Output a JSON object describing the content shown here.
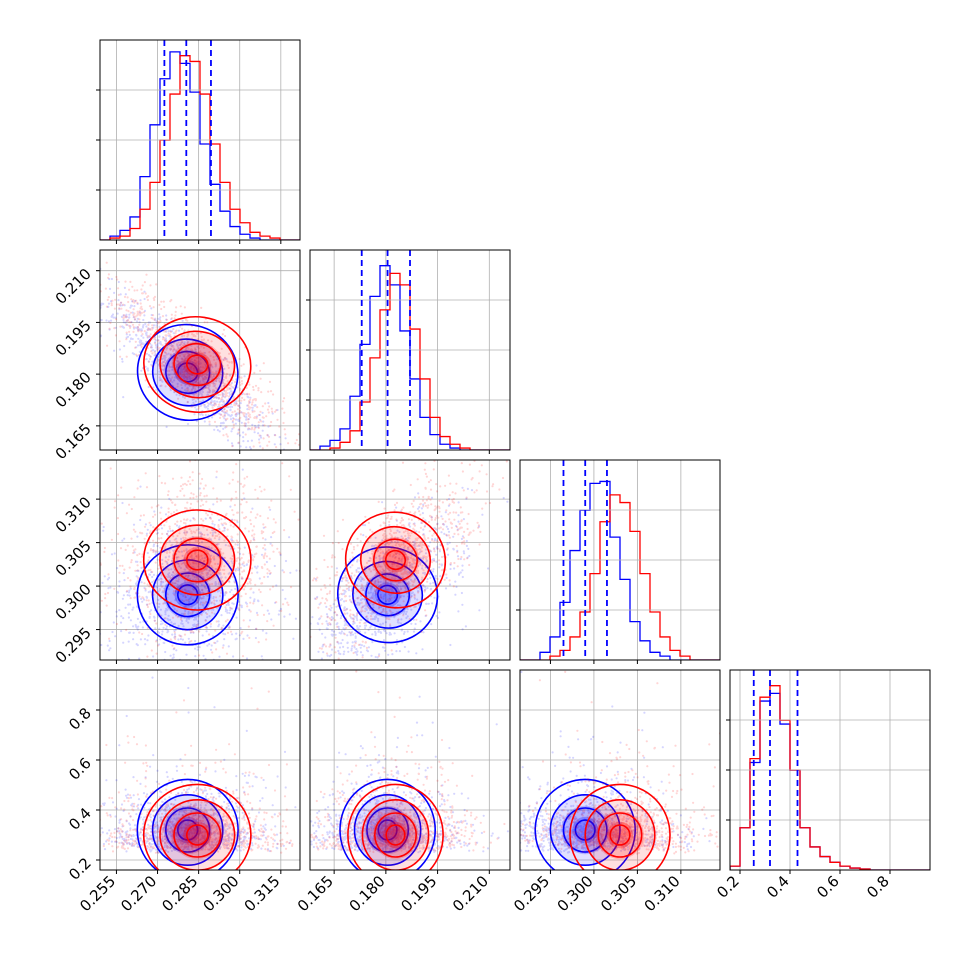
{
  "chart_data": {
    "type": "corner",
    "title": "",
    "n_params": 4,
    "params": [
      {
        "ticks": [
          0.255,
          0.27,
          0.285,
          0.3,
          0.315
        ],
        "tick_labels": [
          "0.255",
          "0.270",
          "0.285",
          "0.300",
          "0.315"
        ],
        "range": [
          0.249,
          0.322
        ],
        "grid_ticks": [
          0.255,
          0.27,
          0.285,
          0.3,
          0.315
        ]
      },
      {
        "ticks": [
          0.165,
          0.18,
          0.195,
          0.21
        ],
        "tick_labels": [
          "0.165",
          "0.180",
          "0.195",
          "0.210"
        ],
        "range": [
          0.158,
          0.216
        ],
        "grid_ticks": [
          0.165,
          0.18,
          0.195,
          0.21
        ]
      },
      {
        "ticks": [
          0.295,
          0.3,
          0.305,
          0.31
        ],
        "tick_labels": [
          "0.295",
          "0.300",
          "0.305",
          "0.310"
        ],
        "range": [
          0.2915,
          0.3145
        ],
        "grid_ticks": [
          0.295,
          0.3,
          0.305,
          0.31
        ]
      },
      {
        "ticks": [
          0.2,
          0.4,
          0.6,
          0.8
        ],
        "tick_labels": [
          "0.2",
          "0.4",
          "0.6",
          "0.8"
        ],
        "range": [
          0.16,
          0.96
        ],
        "grid_ticks": [
          0.2,
          0.4,
          0.6,
          0.8
        ]
      }
    ],
    "series": [
      {
        "color": "#0000ff",
        "mean": [
          0.281,
          0.1805,
          0.299,
          0.32
        ],
        "sd": [
          0.008,
          0.006,
          0.0025,
          0.1
        ],
        "hist": [
          [
            0,
            0.02,
            0.05,
            0.12,
            0.33,
            0.6,
            0.84,
            0.98,
            0.92,
            0.77,
            0.5,
            0.29,
            0.15,
            0.07,
            0.03,
            0.01,
            0,
            0,
            0,
            0
          ],
          [
            0,
            0.02,
            0.05,
            0.11,
            0.28,
            0.55,
            0.8,
            0.96,
            0.86,
            0.62,
            0.37,
            0.17,
            0.08,
            0.03,
            0.01,
            0,
            0,
            0,
            0,
            0
          ],
          [
            0,
            0,
            0.04,
            0.12,
            0.3,
            0.57,
            0.78,
            0.92,
            0.93,
            0.64,
            0.42,
            0.2,
            0.1,
            0.04,
            0.02,
            0,
            0,
            0,
            0,
            0
          ],
          [
            0.02,
            0.22,
            0.56,
            0.88,
            0.92,
            0.76,
            0.52,
            0.22,
            0.12,
            0.07,
            0.04,
            0.02,
            0.01,
            0.005,
            0,
            0,
            0,
            0,
            0,
            0
          ]
        ],
        "quantiles": [
          [
            0.2725,
            0.2805,
            0.2895
          ],
          [
            0.173,
            0.1805,
            0.187
          ],
          [
            0.2965,
            0.299,
            0.3015
          ],
          [
            0.255,
            0.32,
            0.43
          ]
        ]
      },
      {
        "color": "#ff0000",
        "mean": [
          0.2845,
          0.1828,
          0.303,
          0.3
        ],
        "sd": [
          0.0085,
          0.006,
          0.0025,
          0.09
        ],
        "hist": [
          [
            0,
            0.01,
            0.02,
            0.06,
            0.16,
            0.3,
            0.52,
            0.76,
            0.96,
            0.93,
            0.76,
            0.5,
            0.3,
            0.16,
            0.09,
            0.04,
            0.02,
            0.01,
            0,
            0
          ],
          [
            0,
            0,
            0.01,
            0.04,
            0.1,
            0.25,
            0.48,
            0.73,
            0.92,
            0.86,
            0.63,
            0.37,
            0.17,
            0.07,
            0.03,
            0.01,
            0,
            0,
            0,
            0
          ],
          [
            0,
            0,
            0,
            0.02,
            0.05,
            0.12,
            0.25,
            0.45,
            0.72,
            0.86,
            0.82,
            0.67,
            0.45,
            0.25,
            0.12,
            0.05,
            0.02,
            0,
            0,
            0
          ],
          [
            0.02,
            0.22,
            0.58,
            0.9,
            0.96,
            0.78,
            0.52,
            0.22,
            0.12,
            0.07,
            0.04,
            0.02,
            0.01,
            0.005,
            0,
            0,
            0,
            0,
            0,
            0
          ]
        ]
      }
    ],
    "correlations": {
      "0-1": [
        -0.88,
        -0.85
      ],
      "0-2": [
        0.1,
        0.05
      ],
      "1-2": [
        0.65,
        0.65
      ],
      "0-3": [
        0.0,
        0.0
      ],
      "1-3": [
        0.0,
        0.0
      ],
      "2-3": [
        0.0,
        0.0
      ]
    },
    "quantile_line_color": "#0000ff",
    "grid": true,
    "xlabel": "",
    "ylabel": ""
  }
}
